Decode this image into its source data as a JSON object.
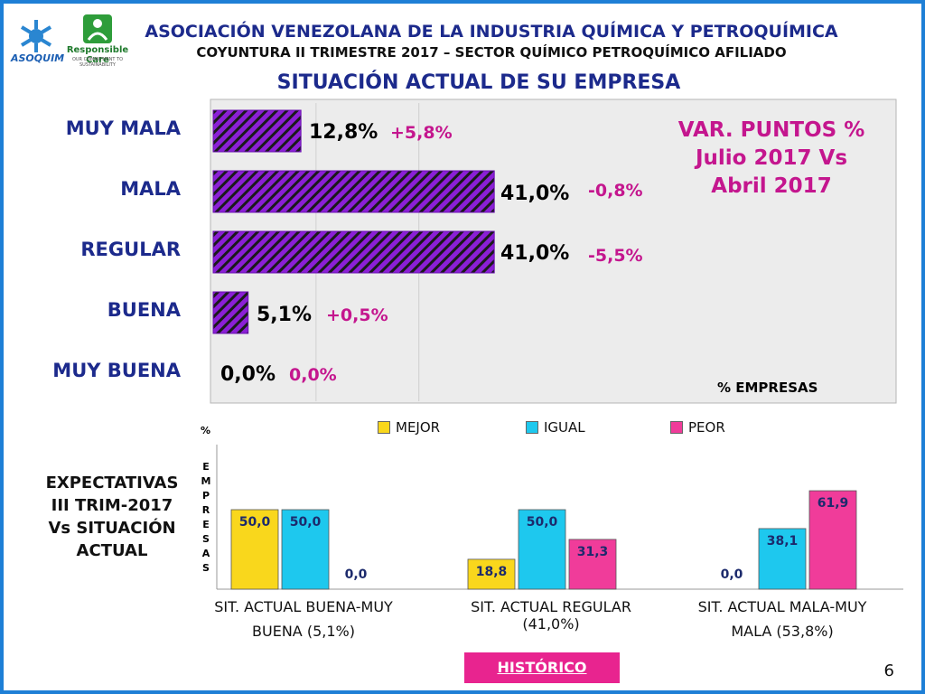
{
  "header": {
    "organization": "ASOCIACIÓN VENEZOLANA DE LA INDUSTRIA QUÍMICA Y PETROQUÍMICA",
    "subtitle": "COYUNTURA II TRIMESTRE 2017 – SECTOR QUÍMICO PETROQUÍMICO AFILIADO",
    "title": "SITUACIÓN ACTUAL DE SU EMPRESA"
  },
  "logos": {
    "left": "ASOQUIM",
    "right_name": "Responsible Care",
    "right_tagline": "OUR COMMITMENT TO SUSTAINABILITY"
  },
  "var_note": {
    "line1": "VAR. PUNTOS %",
    "line2": "Julio 2017 Vs",
    "line3": "Abril 2017"
  },
  "empresas_label": "% EMPRESAS",
  "expectativas": {
    "line1": "EXPECTATIVAS",
    "line2": "III TRIM-2017",
    "line3": "Vs SITUACIÓN",
    "line4": "ACTUAL"
  },
  "y_label_top": "%",
  "y_label_stack": "EMPRESAS",
  "button_label": "HISTÓRICO",
  "page_number": "6",
  "chart_data": [
    {
      "type": "bar",
      "orientation": "horizontal",
      "categories": [
        "MUY MALA",
        "MALA",
        "REGULAR",
        "BUENA",
        "MUY BUENA"
      ],
      "values": [
        12.8,
        41.0,
        41.0,
        5.1,
        0.0
      ],
      "value_labels": [
        "12,8%",
        "41,0%",
        "41,0%",
        "5,1%",
        "0,0%"
      ],
      "variation_labels": [
        "+5,8%",
        "-0,8%",
        "-5,5%",
        "+0,5%",
        "0,0%"
      ],
      "xlim": [
        0,
        100
      ],
      "bar_color": "#8B1FD6",
      "bar_stripe_color": "#1A1A1A"
    },
    {
      "type": "bar",
      "categories": [
        {
          "line1": "SIT. ACTUAL BUENA-MUY",
          "line2": "BUENA (5,1%)"
        },
        {
          "line1": "SIT. ACTUAL REGULAR",
          "line2": "(41,0%)"
        },
        {
          "line1": "SIT. ACTUAL MALA-MUY",
          "line2": "MALA (53,8%)"
        }
      ],
      "series": [
        {
          "name": "MEJOR",
          "color": "#F9D71C",
          "values": [
            50.0,
            18.8,
            0.0
          ],
          "labels": [
            "50,0",
            "18,8",
            "0,0"
          ]
        },
        {
          "name": "IGUAL",
          "color": "#1EC8EE",
          "values": [
            50.0,
            50.0,
            38.1
          ],
          "labels": [
            "50,0",
            "50,0",
            "38,1"
          ]
        },
        {
          "name": "PEOR",
          "color": "#F03C9A",
          "values": [
            0.0,
            31.3,
            61.9
          ],
          "labels": [
            "0,0",
            "31,3",
            "61,9"
          ]
        }
      ],
      "ylim": [
        0,
        75
      ]
    }
  ]
}
